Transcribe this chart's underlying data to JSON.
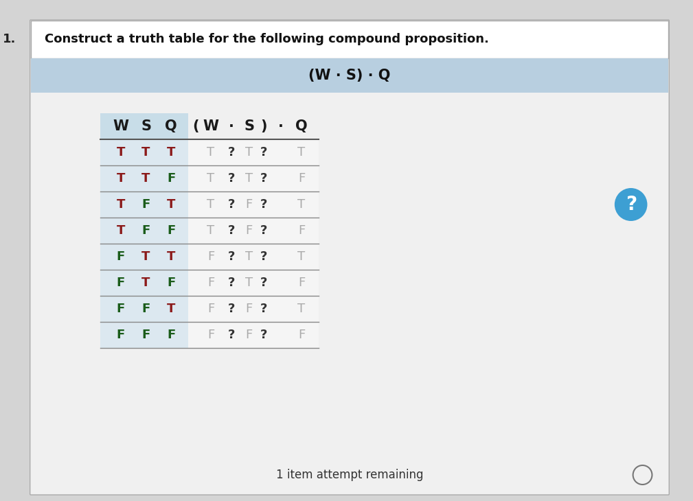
{
  "title_number": "1.",
  "title_text": "Construct a truth table for the following compound proposition.",
  "formula_parts": [
    "(W",
    "·",
    "S)",
    "·",
    "Q"
  ],
  "header_wsq": [
    "W",
    "S",
    "Q"
  ],
  "header_expr": [
    "(",
    "W",
    "·",
    "S",
    ")",
    "·",
    "Q"
  ],
  "rows": [
    [
      "T",
      "T",
      "T",
      "T",
      "?",
      "T",
      "?",
      "T"
    ],
    [
      "T",
      "T",
      "F",
      "T",
      "?",
      "T",
      "?",
      "F"
    ],
    [
      "T",
      "F",
      "T",
      "T",
      "?",
      "F",
      "?",
      "T"
    ],
    [
      "T",
      "F",
      "F",
      "T",
      "?",
      "F",
      "?",
      "F"
    ],
    [
      "F",
      "T",
      "T",
      "F",
      "?",
      "T",
      "?",
      "T"
    ],
    [
      "F",
      "T",
      "F",
      "F",
      "?",
      "T",
      "?",
      "F"
    ],
    [
      "F",
      "F",
      "T",
      "F",
      "?",
      "F",
      "?",
      "T"
    ],
    [
      "F",
      "F",
      "F",
      "F",
      "?",
      "F",
      "?",
      "F"
    ]
  ],
  "color_T_wsq": "#8b1a1a",
  "color_F_wsq": "#1a5c1a",
  "color_expr_tf": "#aaaaaa",
  "color_question": "#333333",
  "color_header": "#1a1a1a",
  "bg_page": "#d4d4d4",
  "bg_card": "#f0f0f0",
  "bg_title_bar": "#ffffff",
  "bg_formula_bar": "#b8cfe0",
  "bg_table_outer": "#d0d0d0",
  "bg_wsq_header": "#c8dde8",
  "bg_wsq_rows": "#dce8f0",
  "bg_expr_rows": "#f0f0f0",
  "color_sep_line": "#888888",
  "badge_color": "#3d9fd3",
  "footer_text": "1 item attempt remaining",
  "title_fontsize": 13,
  "formula_fontsize": 15,
  "header_fontsize": 15,
  "data_fontsize": 13
}
